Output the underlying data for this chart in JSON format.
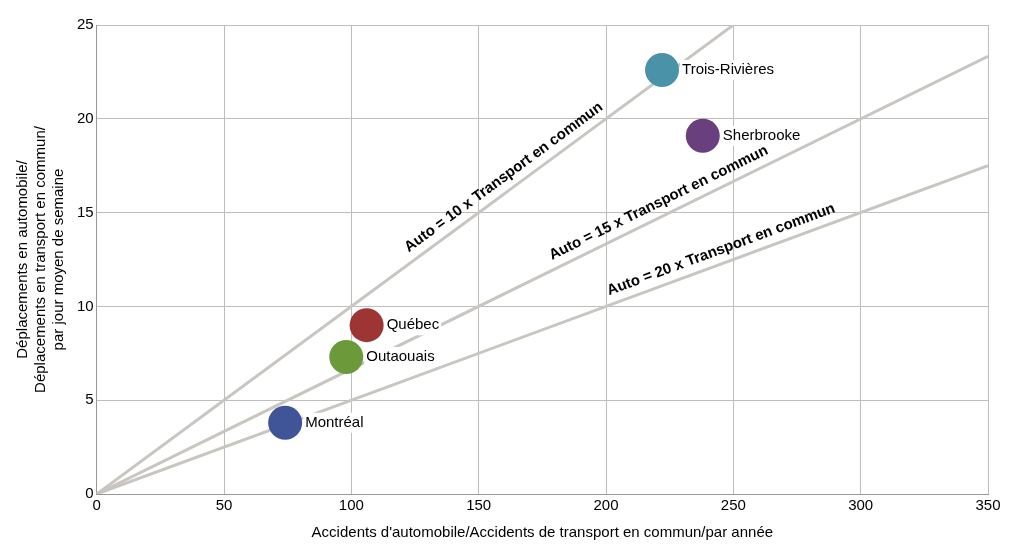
{
  "chart_data": {
    "type": "scatter",
    "xlabel": "Accidents d'automobile/Accidents de transport en commun/par année",
    "ylabel": "Déplacements en automobile/\nDéplacements en transport en commun/\npar jour moyen de semaine",
    "xlim": [
      0,
      350
    ],
    "xticks": [
      0,
      50,
      100,
      150,
      200,
      250,
      300,
      350
    ],
    "ylim": [
      0,
      25
    ],
    "yticks": [
      0,
      5,
      10,
      15,
      20,
      25
    ],
    "grid": true,
    "marker": "circle",
    "series": [
      {
        "type": "line",
        "color": "#c9c5c1",
        "x": [
          0,
          250
        ],
        "values": [
          0,
          25
        ],
        "marker": "none"
      },
      {
        "type": "line",
        "color": "#c9c5c1",
        "x": [
          0,
          350
        ],
        "values": [
          0,
          23.33
        ],
        "marker": "none"
      },
      {
        "type": "line",
        "color": "#c9c5c1",
        "x": [
          0,
          350
        ],
        "values": [
          0,
          17.5
        ],
        "marker": "none"
      },
      {
        "name": "Montréal",
        "color": "#3f5597",
        "x": [
          74
        ],
        "values": [
          3.8
        ]
      },
      {
        "name": "Outaouais",
        "color": "#6c9a3a",
        "x": [
          98
        ],
        "values": [
          7.3
        ]
      },
      {
        "name": "Québec",
        "color": "#9e3535",
        "x": [
          106
        ],
        "values": [
          9.0
        ]
      },
      {
        "name": "Trois-Rivières",
        "color": "#4a92a8",
        "x": [
          222
        ],
        "values": [
          22.6
        ]
      },
      {
        "name": "Sherbrooke",
        "color": "#6a3f7e",
        "x": [
          238
        ],
        "values": [
          19.1
        ]
      }
    ],
    "annotations": [
      {
        "text": "Auto = 10 x Transport en commun",
        "x": 163,
        "y": 16.3
      },
      {
        "text": "Auto = 15 x Transport en commun",
        "x": 223,
        "y": 14.87
      },
      {
        "text": "Auto = 20 x Transport en commun",
        "x": 247,
        "y": 12.35
      }
    ]
  }
}
